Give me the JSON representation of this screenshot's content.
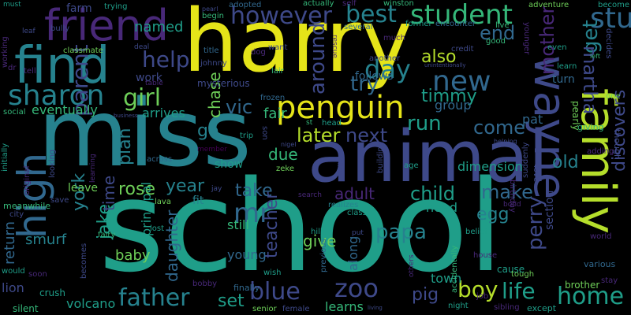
{
  "palette": {
    "yellow": "#e5e419",
    "lightgreen": "#b5de2b",
    "green": "#6ece58",
    "seagreen": "#35b779",
    "teal": "#1f9e89",
    "cyan": "#26828e",
    "blue": "#31688e",
    "indigo": "#3e4989",
    "purple": "#482878",
    "dark": "#440154"
  },
  "words": [
    {
      "text": "harry",
      "color": "yellow"
    },
    {
      "text": "school",
      "color": "teal"
    },
    {
      "text": "miss",
      "color": "cyan"
    },
    {
      "text": "animal",
      "color": "indigo"
    },
    {
      "text": "find",
      "color": "cyan"
    },
    {
      "text": "friend",
      "color": "purple"
    },
    {
      "text": "family",
      "color": "lightgreen"
    },
    {
      "text": "wayne",
      "color": "indigo"
    },
    {
      "text": "high",
      "color": "blue"
    },
    {
      "text": "penguin",
      "color": "yellow"
    },
    {
      "text": "student",
      "color": "seagreen"
    },
    {
      "text": "sharon",
      "color": "cyan"
    },
    {
      "text": "however",
      "color": "indigo"
    },
    {
      "text": "best",
      "color": "cyan"
    },
    {
      "text": "stu",
      "color": "blue"
    },
    {
      "text": "new",
      "color": "blue"
    },
    {
      "text": "day",
      "color": "cyan"
    },
    {
      "text": "help",
      "color": "indigo"
    },
    {
      "text": "girl",
      "color": "green"
    },
    {
      "text": "around",
      "color": "indigo"
    },
    {
      "text": "try",
      "color": "blue"
    },
    {
      "text": "run",
      "color": "teal"
    },
    {
      "text": "later",
      "color": "lightgreen"
    },
    {
      "text": "next",
      "color": "indigo"
    },
    {
      "text": "come",
      "color": "blue"
    },
    {
      "text": "get",
      "color": "cyan"
    },
    {
      "text": "martha",
      "color": "indigo"
    },
    {
      "text": "end",
      "color": "blue"
    },
    {
      "text": "also",
      "color": "lightgreen"
    },
    {
      "text": "timmy",
      "color": "teal"
    },
    {
      "text": "group",
      "color": "blue"
    },
    {
      "text": "mother",
      "color": "purple"
    },
    {
      "text": "discovers",
      "color": "indigo"
    },
    {
      "text": "old",
      "color": "cyan"
    },
    {
      "text": "pat",
      "color": "blue"
    },
    {
      "text": "parent",
      "color": "indigo"
    },
    {
      "text": "york",
      "color": "cyan"
    },
    {
      "text": "jake",
      "color": "teal"
    },
    {
      "text": "time",
      "color": "indigo"
    },
    {
      "text": "plan",
      "color": "cyan"
    },
    {
      "text": "chase",
      "color": "green"
    },
    {
      "text": "vic",
      "color": "blue"
    },
    {
      "text": "go",
      "color": "cyan"
    },
    {
      "text": "fair",
      "color": "seagreen"
    },
    {
      "text": "due",
      "color": "seagreen"
    },
    {
      "text": "dimension",
      "color": "teal"
    },
    {
      "text": "rose",
      "color": "green"
    },
    {
      "text": "year",
      "color": "cyan"
    },
    {
      "text": "take",
      "color": "blue"
    },
    {
      "text": "adult",
      "color": "purple"
    },
    {
      "text": "child",
      "color": "teal"
    },
    {
      "text": "make",
      "color": "blue"
    },
    {
      "text": "perry",
      "color": "indigo"
    },
    {
      "text": "egg",
      "color": "cyan"
    },
    {
      "text": "papa",
      "color": "cyan"
    },
    {
      "text": "mr",
      "color": "blue"
    },
    {
      "text": "teacher",
      "color": "indigo"
    },
    {
      "text": "daughter",
      "color": "blue"
    },
    {
      "text": "give",
      "color": "green"
    },
    {
      "text": "father",
      "color": "cyan"
    },
    {
      "text": "blue",
      "color": "indigo"
    },
    {
      "text": "zoo",
      "color": "indigo"
    },
    {
      "text": "boy",
      "color": "lightgreen"
    },
    {
      "text": "life",
      "color": "teal"
    },
    {
      "text": "home",
      "color": "teal"
    },
    {
      "text": "pig",
      "color": "indigo"
    },
    {
      "text": "set",
      "color": "teal"
    },
    {
      "text": "volcano",
      "color": "teal"
    },
    {
      "text": "learns",
      "color": "seagreen"
    },
    {
      "text": "town",
      "color": "teal"
    },
    {
      "text": "lion",
      "color": "indigo"
    },
    {
      "text": "return",
      "color": "blue"
    },
    {
      "text": "smurf",
      "color": "cyan"
    },
    {
      "text": "baby",
      "color": "green"
    },
    {
      "text": "young",
      "color": "blue"
    },
    {
      "text": "still",
      "color": "seagreen"
    },
    {
      "text": "need",
      "color": "teal"
    },
    {
      "text": "along",
      "color": "blue"
    },
    {
      "text": "work",
      "color": "indigo"
    },
    {
      "text": "named",
      "color": "teal"
    },
    {
      "text": "farm",
      "color": "indigo"
    },
    {
      "text": "eventually",
      "color": "seagreen"
    },
    {
      "text": "arrives",
      "color": "teal"
    },
    {
      "text": "principal",
      "color": "teal"
    },
    {
      "text": "show",
      "color": "teal"
    },
    {
      "text": "leave",
      "color": "green"
    },
    {
      "text": "fit",
      "color": "cyan"
    },
    {
      "text": "follows",
      "color": "blue"
    },
    {
      "text": "section",
      "color": "indigo"
    },
    {
      "text": "turn",
      "color": "blue"
    },
    {
      "text": "crush",
      "color": "teal"
    },
    {
      "text": "silent",
      "color": "seagreen"
    },
    {
      "text": "cause",
      "color": "teal"
    },
    {
      "text": "brother",
      "color": "green"
    },
    {
      "text": "stay",
      "color": "purple"
    },
    {
      "text": "except",
      "color": "teal"
    },
    {
      "text": "night",
      "color": "teal"
    },
    {
      "text": "job",
      "color": "purple"
    },
    {
      "text": "female",
      "color": "indigo"
    },
    {
      "text": "senior",
      "color": "green"
    },
    {
      "text": "finally",
      "color": "blue"
    },
    {
      "text": "bobby",
      "color": "purple"
    },
    {
      "text": "wish",
      "color": "teal"
    },
    {
      "text": "becomes",
      "color": "indigo"
    },
    {
      "text": "would",
      "color": "teal"
    },
    {
      "text": "soon",
      "color": "purple"
    },
    {
      "text": "city",
      "color": "indigo"
    },
    {
      "text": "save",
      "color": "indigo"
    },
    {
      "text": "meanwhile",
      "color": "seagreen"
    },
    {
      "text": "initially",
      "color": "teal"
    },
    {
      "text": "original",
      "color": "purple"
    },
    {
      "text": "looking",
      "color": "indigo"
    },
    {
      "text": "learning",
      "color": "purple"
    },
    {
      "text": "across",
      "color": "blue"
    },
    {
      "text": "lava",
      "color": "green"
    },
    {
      "text": "fairy",
      "color": "seagreen"
    },
    {
      "text": "lost",
      "color": "teal"
    },
    {
      "text": "hill",
      "color": "teal"
    },
    {
      "text": "put",
      "color": "indigo"
    },
    {
      "text": "class",
      "color": "teal"
    },
    {
      "text": "realizes",
      "color": "cyan"
    },
    {
      "text": "search",
      "color": "purple"
    },
    {
      "text": "accidentally",
      "color": "seagreen"
    },
    {
      "text": "others",
      "color": "purple"
    },
    {
      "text": "previous",
      "color": "blue"
    },
    {
      "text": "belief",
      "color": "teal"
    },
    {
      "text": "house",
      "color": "purple"
    },
    {
      "text": "tough",
      "color": "green"
    },
    {
      "text": "various",
      "color": "blue"
    },
    {
      "text": "world",
      "color": "purple"
    },
    {
      "text": "giving",
      "color": "seagreen"
    },
    {
      "text": "suddenly",
      "color": "indigo"
    },
    {
      "text": "birthday",
      "color": "purple"
    },
    {
      "text": "love",
      "color": "indigo"
    },
    {
      "text": "pearly",
      "color": "green"
    },
    {
      "text": "adding",
      "color": "purple"
    },
    {
      "text": "though",
      "color": "indigo"
    },
    {
      "text": "one",
      "color": "green"
    },
    {
      "text": "learn",
      "color": "teal"
    },
    {
      "text": "even",
      "color": "teal"
    },
    {
      "text": "younger",
      "color": "purple"
    },
    {
      "text": "good",
      "color": "seagreen"
    },
    {
      "text": "former",
      "color": "teal"
    },
    {
      "text": "encounter",
      "color": "blue"
    },
    {
      "text": "live",
      "color": "seagreen"
    },
    {
      "text": "winston",
      "color": "seagreen"
    },
    {
      "text": "actually",
      "color": "seagreen"
    },
    {
      "text": "self",
      "color": "purple"
    },
    {
      "text": "several",
      "color": "blue"
    },
    {
      "text": "much",
      "color": "purple"
    },
    {
      "text": "another",
      "color": "indigo"
    },
    {
      "text": "credit",
      "color": "indigo"
    },
    {
      "text": "unintentionally",
      "color": "indigo"
    },
    {
      "text": "rescue",
      "color": "purple"
    },
    {
      "text": "want",
      "color": "indigo"
    },
    {
      "text": "lair",
      "color": "seagreen"
    },
    {
      "text": "dog",
      "color": "purple"
    },
    {
      "text": "title",
      "color": "blue"
    },
    {
      "text": "johnny",
      "color": "indigo"
    },
    {
      "text": "mysterious",
      "color": "indigo"
    },
    {
      "text": "frozen",
      "color": "blue"
    },
    {
      "text": "table",
      "color": "purple"
    },
    {
      "text": "deal",
      "color": "indigo"
    },
    {
      "text": "classmate",
      "color": "green"
    },
    {
      "text": "bully",
      "color": "indigo"
    },
    {
      "text": "leaf",
      "color": "indigo"
    },
    {
      "text": "tell",
      "color": "purple"
    },
    {
      "text": "dr",
      "color": "purple"
    },
    {
      "text": "must",
      "color": "teal"
    },
    {
      "text": "working",
      "color": "purple"
    },
    {
      "text": "social",
      "color": "seagreen"
    },
    {
      "text": "business",
      "color": "indigo"
    },
    {
      "text": "trip",
      "color": "teal"
    },
    {
      "text": "member",
      "color": "dark"
    },
    {
      "text": "son",
      "color": "indigo"
    },
    {
      "text": "nigel",
      "color": "indigo"
    },
    {
      "text": "zeke",
      "color": "green"
    },
    {
      "text": "st",
      "color": "seagreen"
    },
    {
      "text": "head",
      "color": "teal"
    },
    {
      "text": "follow",
      "color": "indigo"
    },
    {
      "text": "building",
      "color": "indigo"
    },
    {
      "text": "age",
      "color": "teal"
    },
    {
      "text": "helping",
      "color": "indigo"
    },
    {
      "text": "bond",
      "color": "purple"
    },
    {
      "text": "sibling",
      "color": "purple"
    },
    {
      "text": "living",
      "color": "indigo"
    },
    {
      "text": "adopted",
      "color": "blue"
    },
    {
      "text": "trying",
      "color": "teal"
    },
    {
      "text": "begin",
      "color": "seagreen"
    },
    {
      "text": "pearl",
      "color": "indigo"
    },
    {
      "text": "adventure",
      "color": "green"
    },
    {
      "text": "become",
      "color": "teal"
    },
    {
      "text": "decides",
      "color": "indigo"
    },
    {
      "text": "left",
      "color": "seagreen"
    },
    {
      "text": "jay",
      "color": "indigo"
    }
  ]
}
